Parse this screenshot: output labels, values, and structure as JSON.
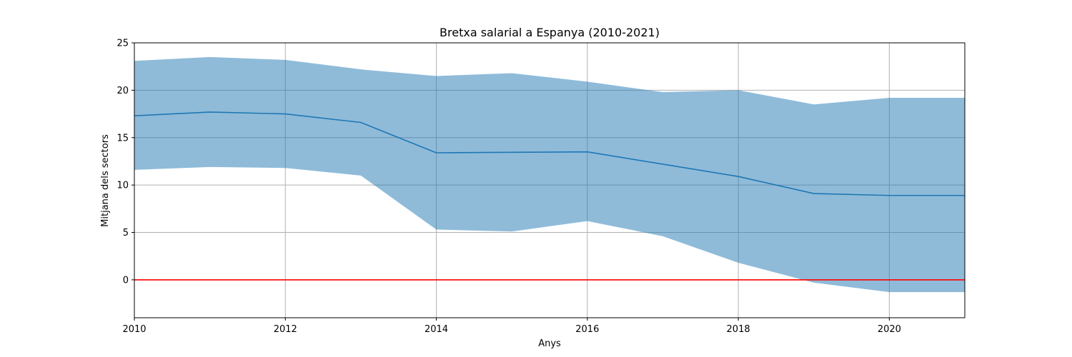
{
  "chart_data": {
    "type": "line",
    "title": "Bretxa salarial a Espanya (2010-2021)",
    "xlabel": "Anys",
    "ylabel": "Mitjana dels sectors",
    "xlim": [
      2010,
      2021
    ],
    "ylim": [
      -4,
      25
    ],
    "grid": true,
    "x_ticks": [
      2010,
      2012,
      2014,
      2016,
      2018,
      2020
    ],
    "y_ticks": [
      0,
      5,
      10,
      15,
      20,
      25
    ],
    "x": [
      2010,
      2011,
      2012,
      2013,
      2014,
      2015,
      2016,
      2017,
      2018,
      2019,
      2020,
      2021
    ],
    "series": [
      {
        "type": "line",
        "values": [
          17.3,
          17.7,
          17.5,
          16.6,
          13.4,
          13.45,
          13.5,
          12.2,
          10.9,
          9.1,
          8.9,
          8.9
        ],
        "color": "#1f77b4"
      },
      {
        "type": "band",
        "upper": [
          23.1,
          23.5,
          23.2,
          22.2,
          21.5,
          21.8,
          20.9,
          19.8,
          20.0,
          18.5,
          19.2,
          19.2
        ],
        "lower": [
          11.6,
          11.9,
          11.8,
          11.0,
          5.3,
          5.1,
          6.2,
          4.6,
          1.8,
          -0.3,
          -1.3,
          -1.3
        ],
        "color": "#1f77b4",
        "opacity": 0.5
      },
      {
        "type": "hline",
        "value": 0,
        "color": "#ff0000"
      }
    ]
  }
}
